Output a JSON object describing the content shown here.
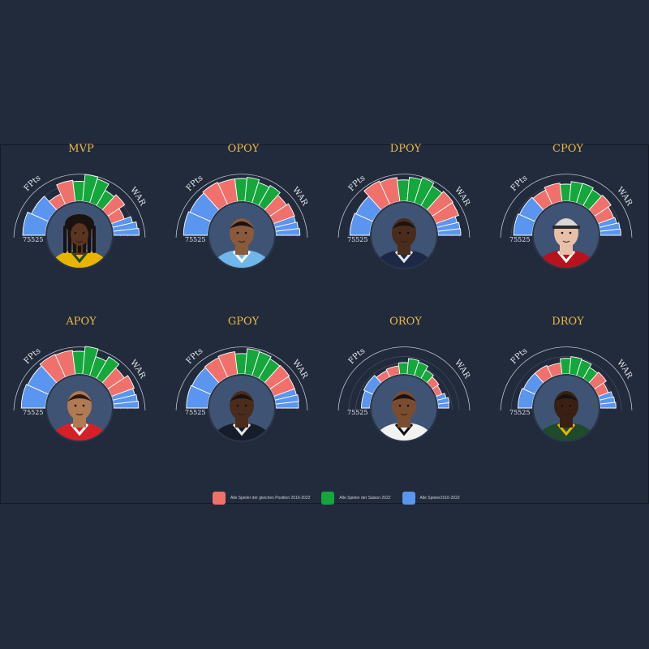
{
  "colors": {
    "background": "#222b3c",
    "award_title": "#e9b949",
    "position": "#f0716c",
    "season": "#15a63c",
    "all": "#5a95ef",
    "avatar_bg": "#3f5474",
    "label": "#e6e9ee"
  },
  "labels": {
    "left_arc": "FPts",
    "right_arc": "WAR",
    "ticks": "75",
    "ticks_value": "50",
    "ticks_low": "25"
  },
  "legend": [
    {
      "label": "Alle Spieler der gleichen Position 2016-2022",
      "color": "#f0716c"
    },
    {
      "label": "Alle Spieler der Saison 2022",
      "color": "#15a63c"
    },
    {
      "label": "Alle Spieler2016-2022",
      "color": "#5a95ef"
    }
  ],
  "chart_data": [
    {
      "type": "radial-bar",
      "title": "MVP",
      "player": {
        "jersey": "#e8b400",
        "accent": "#1f4a2c",
        "skin": "#5a3520",
        "hair": "#1a1210",
        "helmet": false,
        "dreads": true
      },
      "series": [
        {
          "name": "position",
          "values": [
            40,
            75,
            72,
            48
          ]
        },
        {
          "name": "season",
          "values": [
            70,
            95,
            88,
            62
          ]
        },
        {
          "name": "all",
          "values": [
            80,
            65,
            72,
            85,
            90
          ]
        }
      ]
    },
    {
      "type": "radial-bar",
      "title": "OPOY",
      "player": {
        "jersey": "#6fb6ea",
        "accent": "#ffffff",
        "skin": "#8a5a3a",
        "hair": "#1a1210",
        "helmet": false,
        "dreads": false
      },
      "series": [
        {
          "name": "position",
          "values": [
            85,
            80,
            70,
            78
          ]
        },
        {
          "name": "season",
          "values": [
            80,
            85,
            75,
            82
          ]
        },
        {
          "name": "all",
          "values": [
            85,
            80,
            75,
            80,
            85
          ]
        }
      ]
    },
    {
      "type": "radial-bar",
      "title": "DPOY",
      "player": {
        "jersey": "#1c2845",
        "accent": "#e6e6e6",
        "skin": "#4a2c1c",
        "hair": "#1a1210",
        "helmet": false,
        "dreads": false
      },
      "series": [
        {
          "name": "position",
          "values": [
            90,
            85,
            88,
            85
          ]
        },
        {
          "name": "season",
          "values": [
            75,
            85,
            92,
            80
          ]
        },
        {
          "name": "all",
          "values": [
            70,
            65,
            72,
            78,
            80
          ]
        }
      ]
    },
    {
      "type": "radial-bar",
      "title": "CPOY",
      "player": {
        "jersey": "#b6131c",
        "accent": "#ffffff",
        "skin": "#e8c0a8",
        "hair": "#2a2a2a",
        "helmet": false,
        "dreads": false,
        "cap": true
      },
      "series": [
        {
          "name": "position",
          "values": [
            55,
            65,
            70,
            58
          ]
        },
        {
          "name": "season",
          "values": [
            60,
            70,
            72,
            65
          ]
        },
        {
          "name": "all",
          "values": [
            65,
            60,
            62,
            70,
            72
          ]
        }
      ]
    },
    {
      "type": "radial-bar",
      "title": "APOY",
      "player": {
        "jersey": "#d42027",
        "accent": "#ffffff",
        "skin": "#b07a52",
        "hair": "#2a1a10",
        "helmet": false,
        "dreads": false
      },
      "series": [
        {
          "name": "position",
          "values": [
            88,
            85,
            70,
            85
          ]
        },
        {
          "name": "season",
          "values": [
            80,
            98,
            70,
            88
          ]
        },
        {
          "name": "all",
          "values": [
            85,
            80,
            80,
            85,
            88
          ]
        }
      ]
    },
    {
      "type": "radial-bar",
      "title": "GPOY",
      "player": {
        "jersey": "#151d2b",
        "accent": "#e6e6e6",
        "skin": "#4a2c1c",
        "hair": "#1a1210",
        "helmet": false,
        "dreads": false
      },
      "series": [
        {
          "name": "position",
          "values": [
            75,
            80,
            82,
            78
          ]
        },
        {
          "name": "season",
          "values": [
            72,
            90,
            88,
            80
          ]
        },
        {
          "name": "all",
          "values": [
            75,
            72,
            78,
            82,
            80
          ]
        }
      ]
    },
    {
      "type": "radial-bar",
      "title": "OROY",
      "player": {
        "jersey": "#f2f2f2",
        "accent": "#111111",
        "skin": "#7a4c30",
        "hair": "#1a1210",
        "helmet": false,
        "dreads": false
      },
      "series": [
        {
          "name": "position",
          "values": [
            25,
            30,
            28,
            22
          ]
        },
        {
          "name": "season",
          "values": [
            40,
            55,
            50,
            35
          ]
        },
        {
          "name": "all",
          "values": [
            30,
            35,
            32,
            40,
            38
          ]
        }
      ]
    },
    {
      "type": "radial-bar",
      "title": "DROY",
      "player": {
        "jersey": "#1f4a2c",
        "accent": "#e8b400",
        "skin": "#3a2014",
        "hair": "#1a1210",
        "helmet": false,
        "dreads": false
      },
      "series": [
        {
          "name": "position",
          "values": [
            45,
            40,
            50,
            38
          ]
        },
        {
          "name": "season",
          "values": [
            55,
            62,
            58,
            45
          ]
        },
        {
          "name": "all",
          "values": [
            50,
            45,
            48,
            52,
            55
          ]
        }
      ]
    }
  ]
}
